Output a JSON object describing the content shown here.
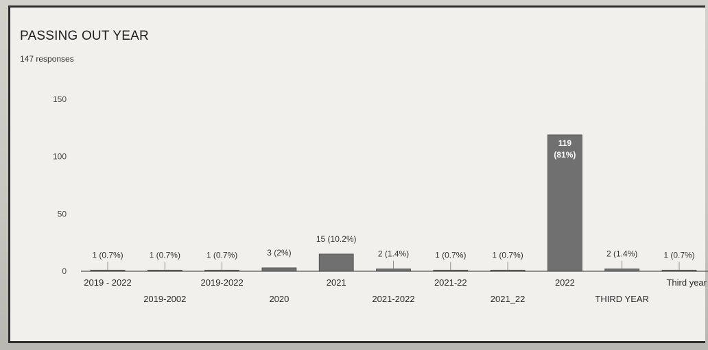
{
  "page": {
    "title": "PASSING OUT YEAR",
    "subtitle": "147 responses"
  },
  "colors": {
    "bar": "#707070",
    "bar_stroke": "#4a4a4a",
    "card_bg": "#f1f0ec",
    "axis": "#555555"
  },
  "chart_data": {
    "type": "bar",
    "title": "PASSING OUT YEAR",
    "subtitle": "147 responses",
    "xlabel": "",
    "ylabel": "",
    "ylim": [
      0,
      150
    ],
    "yticks": [
      0,
      50,
      100,
      150
    ],
    "grid": false,
    "legend": "none",
    "categories": [
      "2019 - 2022",
      "2019-2002",
      "2019-2022",
      "2020",
      "2021",
      "2021-2022",
      "2021-22",
      "2021_22",
      "2022",
      "THIRD YEAR",
      "Third year"
    ],
    "values": [
      1,
      1,
      1,
      3,
      15,
      2,
      1,
      1,
      119,
      2,
      1
    ],
    "labels": [
      "1 (0.7%)",
      "1 (0.7%)",
      "1 (0.7%)",
      "3 (2%)",
      "15 (10.2%)",
      "2 (1.4%)",
      "1 (0.7%)",
      "1 (0.7%)",
      "119 (81%)",
      "2 (1.4%)",
      "1 (0.7%)"
    ]
  }
}
